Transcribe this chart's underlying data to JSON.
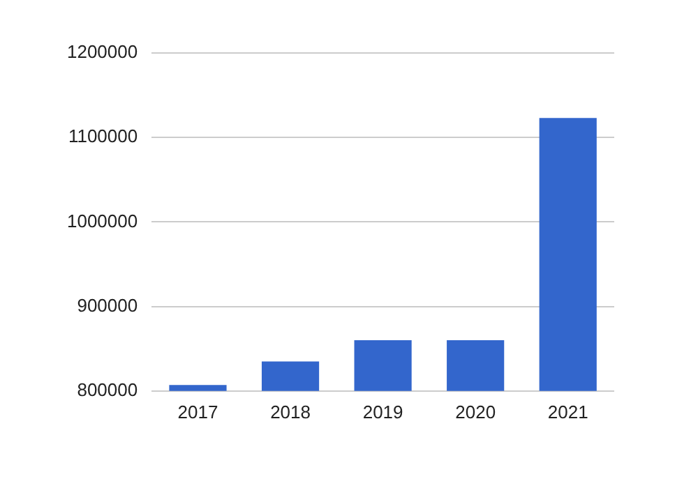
{
  "chart_data": {
    "type": "bar",
    "categories": [
      "2017",
      "2018",
      "2019",
      "2020",
      "2021"
    ],
    "values": [
      807000,
      835000,
      860000,
      860000,
      1123000
    ],
    "color": "#3366cc",
    "ylim": [
      800000,
      1200000
    ],
    "yticks": [
      800000,
      900000,
      1000000,
      1100000,
      1200000
    ],
    "grid": "y",
    "legend": false
  }
}
